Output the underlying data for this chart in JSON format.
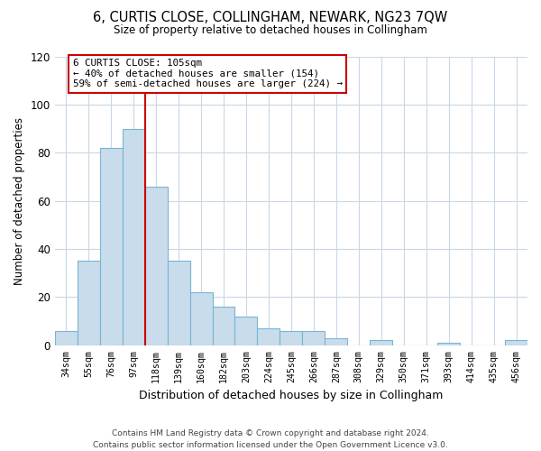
{
  "title": "6, CURTIS CLOSE, COLLINGHAM, NEWARK, NG23 7QW",
  "subtitle": "Size of property relative to detached houses in Collingham",
  "xlabel": "Distribution of detached houses by size in Collingham",
  "ylabel": "Number of detached properties",
  "bar_labels": [
    "34sqm",
    "55sqm",
    "76sqm",
    "97sqm",
    "118sqm",
    "139sqm",
    "160sqm",
    "182sqm",
    "203sqm",
    "224sqm",
    "245sqm",
    "266sqm",
    "287sqm",
    "308sqm",
    "329sqm",
    "350sqm",
    "371sqm",
    "393sqm",
    "414sqm",
    "435sqm",
    "456sqm"
  ],
  "bar_values": [
    6,
    35,
    82,
    90,
    66,
    35,
    22,
    16,
    12,
    7,
    6,
    6,
    3,
    0,
    2,
    0,
    0,
    1,
    0,
    0,
    2
  ],
  "bar_color": "#c8dcec",
  "bar_edge_color": "#7ab4d4",
  "vline_x_index": 3.5,
  "vline_color": "#cc0000",
  "annotation_text": "6 CURTIS CLOSE: 105sqm\n← 40% of detached houses are smaller (154)\n59% of semi-detached houses are larger (224) →",
  "annotation_box_color": "white",
  "annotation_box_edge": "#cc0000",
  "ylim": [
    0,
    120
  ],
  "yticks": [
    0,
    20,
    40,
    60,
    80,
    100,
    120
  ],
  "footer": "Contains HM Land Registry data © Crown copyright and database right 2024.\nContains public sector information licensed under the Open Government Licence v3.0.",
  "bg_color": "#ffffff",
  "grid_color": "#c8d8e8"
}
